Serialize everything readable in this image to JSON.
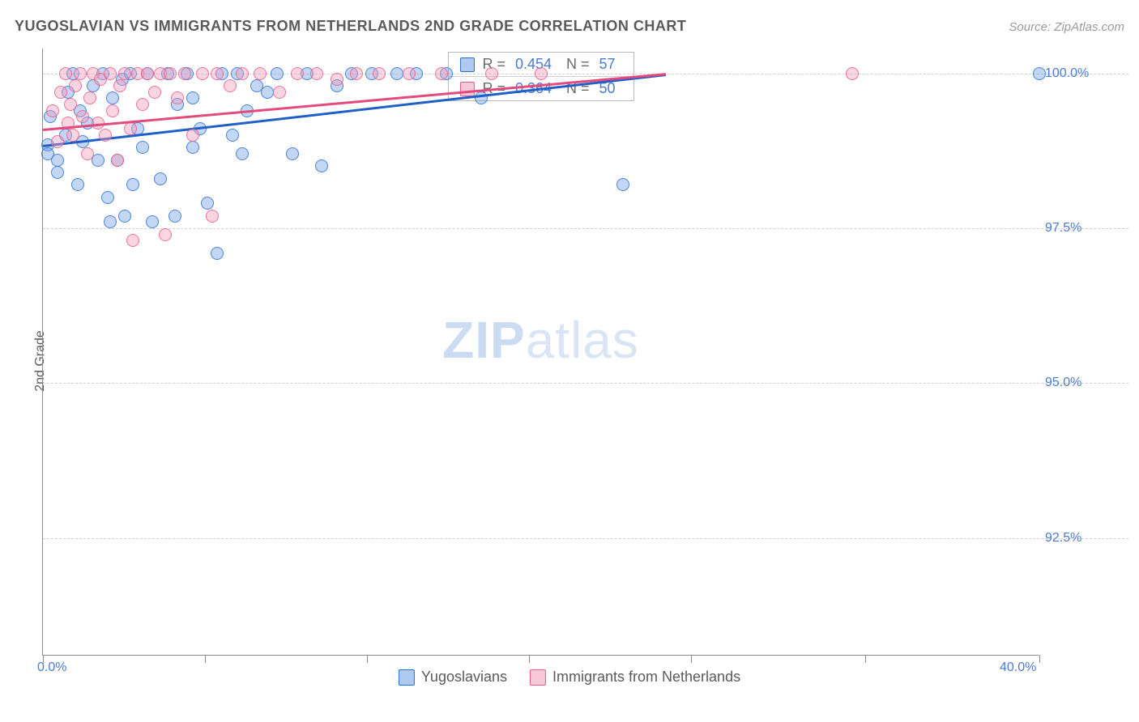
{
  "title": "YUGOSLAVIAN VS IMMIGRANTS FROM NETHERLANDS 2ND GRADE CORRELATION CHART",
  "source_label": "Source: ",
  "source_name": "ZipAtlas.com",
  "y_axis_label": "2nd Grade",
  "watermark_zip": "ZIP",
  "watermark_atlas": "atlas",
  "chart": {
    "type": "scatter",
    "xlim": [
      0,
      40
    ],
    "ylim": [
      90.6,
      100.4
    ],
    "x_ticks": [
      0,
      6.5,
      13,
      19.5,
      26,
      33,
      40
    ],
    "x_tick_labels": {
      "0": "0.0%",
      "40": "40.0%"
    },
    "y_ticks": [
      92.5,
      95.0,
      97.5,
      100.0
    ],
    "y_tick_labels": [
      "92.5%",
      "95.0%",
      "97.5%",
      "100.0%"
    ],
    "background_color": "#ffffff",
    "grid_color": "#d0d0d0",
    "axis_color": "#8a8a8a",
    "label_color": "#4a7bd4",
    "point_radius": 8,
    "point_opacity": 0.42,
    "point_border_opacity": 0.8
  },
  "series": [
    {
      "name": "Yugoslavians",
      "fill_color": "#6f9de3",
      "stroke_color": "#2a6fd6",
      "trend_color": "#1f5fc7",
      "trend": {
        "x1": 0,
        "y1": 98.85,
        "x2": 25,
        "y2": 100.0
      },
      "stats": {
        "R": "0.454",
        "N": "57"
      },
      "points": [
        [
          0.2,
          98.85
        ],
        [
          0.2,
          98.7
        ],
        [
          0.3,
          99.3
        ],
        [
          0.6,
          98.6
        ],
        [
          0.6,
          98.4
        ],
        [
          0.9,
          99.0
        ],
        [
          1.0,
          99.7
        ],
        [
          1.2,
          100.0
        ],
        [
          1.4,
          98.2
        ],
        [
          1.5,
          99.4
        ],
        [
          1.6,
          98.9
        ],
        [
          1.8,
          99.2
        ],
        [
          2.0,
          99.8
        ],
        [
          2.2,
          98.6
        ],
        [
          2.4,
          100.0
        ],
        [
          2.6,
          98.0
        ],
        [
          2.7,
          97.6
        ],
        [
          2.8,
          99.6
        ],
        [
          3.0,
          98.6
        ],
        [
          3.2,
          99.9
        ],
        [
          3.3,
          97.7
        ],
        [
          3.5,
          100.0
        ],
        [
          3.6,
          98.2
        ],
        [
          3.8,
          99.1
        ],
        [
          4.0,
          98.8
        ],
        [
          4.2,
          100.0
        ],
        [
          4.4,
          97.6
        ],
        [
          4.7,
          98.3
        ],
        [
          5.0,
          100.0
        ],
        [
          5.3,
          97.7
        ],
        [
          5.4,
          99.5
        ],
        [
          5.8,
          100.0
        ],
        [
          6.0,
          99.6
        ],
        [
          6.0,
          98.8
        ],
        [
          6.3,
          99.1
        ],
        [
          6.6,
          97.9
        ],
        [
          7.0,
          97.1
        ],
        [
          7.2,
          100.0
        ],
        [
          7.6,
          99.0
        ],
        [
          7.8,
          100.0
        ],
        [
          8.0,
          98.7
        ],
        [
          8.2,
          99.4
        ],
        [
          8.6,
          99.8
        ],
        [
          9.0,
          99.7
        ],
        [
          9.4,
          100.0
        ],
        [
          10.0,
          98.7
        ],
        [
          10.6,
          100.0
        ],
        [
          11.2,
          98.5
        ],
        [
          11.8,
          99.8
        ],
        [
          12.4,
          100.0
        ],
        [
          13.2,
          100.0
        ],
        [
          14.2,
          100.0
        ],
        [
          15.0,
          100.0
        ],
        [
          16.2,
          100.0
        ],
        [
          17.6,
          99.6
        ],
        [
          23.3,
          98.2
        ],
        [
          40.0,
          100.0
        ]
      ]
    },
    {
      "name": "Immigrants from Netherlands",
      "fill_color": "#f19bb8",
      "stroke_color": "#e85a88",
      "trend_color": "#e44a7c",
      "trend": {
        "x1": 0,
        "y1": 99.1,
        "x2": 25,
        "y2": 100.0
      },
      "stats": {
        "R": "0.364",
        "N": "50"
      },
      "points": [
        [
          0.4,
          99.4
        ],
        [
          0.6,
          98.9
        ],
        [
          0.7,
          99.7
        ],
        [
          0.9,
          100.0
        ],
        [
          1.0,
          99.2
        ],
        [
          1.1,
          99.5
        ],
        [
          1.2,
          99.0
        ],
        [
          1.3,
          99.8
        ],
        [
          1.5,
          100.0
        ],
        [
          1.6,
          99.3
        ],
        [
          1.8,
          98.7
        ],
        [
          1.9,
          99.6
        ],
        [
          2.0,
          100.0
        ],
        [
          2.2,
          99.2
        ],
        [
          2.3,
          99.9
        ],
        [
          2.5,
          99.0
        ],
        [
          2.7,
          100.0
        ],
        [
          2.8,
          99.4
        ],
        [
          3.0,
          98.6
        ],
        [
          3.1,
          99.8
        ],
        [
          3.3,
          100.0
        ],
        [
          3.5,
          99.1
        ],
        [
          3.6,
          97.3
        ],
        [
          3.8,
          100.0
        ],
        [
          4.0,
          99.5
        ],
        [
          4.2,
          100.0
        ],
        [
          4.5,
          99.7
        ],
        [
          4.7,
          100.0
        ],
        [
          4.9,
          97.4
        ],
        [
          5.1,
          100.0
        ],
        [
          5.4,
          99.6
        ],
        [
          5.7,
          100.0
        ],
        [
          6.0,
          99.0
        ],
        [
          6.4,
          100.0
        ],
        [
          6.8,
          97.7
        ],
        [
          7.0,
          100.0
        ],
        [
          7.5,
          99.8
        ],
        [
          8.0,
          100.0
        ],
        [
          8.7,
          100.0
        ],
        [
          9.5,
          99.7
        ],
        [
          10.2,
          100.0
        ],
        [
          11.0,
          100.0
        ],
        [
          11.8,
          99.9
        ],
        [
          12.6,
          100.0
        ],
        [
          13.5,
          100.0
        ],
        [
          14.7,
          100.0
        ],
        [
          16.0,
          100.0
        ],
        [
          18.0,
          100.0
        ],
        [
          20.0,
          100.0
        ],
        [
          32.5,
          100.0
        ]
      ]
    }
  ],
  "stats_labels": {
    "R": "R =",
    "N": "N ="
  },
  "legend": {
    "series1": "Yugoslavians",
    "series2": "Immigrants from Netherlands"
  }
}
